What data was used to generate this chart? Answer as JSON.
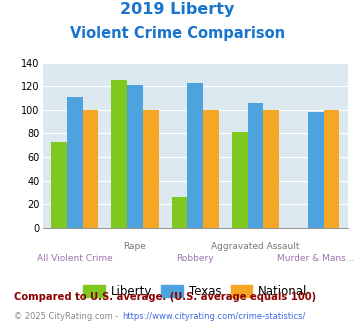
{
  "title_line1": "2019 Liberty",
  "title_line2": "Violent Crime Comparison",
  "title_color": "#1874CD",
  "liberty_values": [
    73,
    125,
    26,
    81,
    0
  ],
  "texas_values": [
    111,
    121,
    123,
    106,
    98
  ],
  "national_values": [
    100,
    100,
    100,
    100,
    100
  ],
  "liberty_color": "#7EC820",
  "texas_color": "#4CA3DD",
  "national_color": "#F5A623",
  "ylim": [
    0,
    140
  ],
  "yticks": [
    0,
    20,
    40,
    60,
    80,
    100,
    120,
    140
  ],
  "background_color": "#DCE9F0",
  "legend_labels": [
    "Liberty",
    "Texas",
    "National"
  ],
  "x_label_top": [
    "",
    "Rape",
    "",
    "Aggravated Assault",
    ""
  ],
  "x_label_bot": [
    "All Violent Crime",
    "",
    "Robbery",
    "",
    "Murder & Mans..."
  ],
  "x_top_color": "#777777",
  "x_bot_color": "#9B72B0",
  "footnote1": "Compared to U.S. average. (U.S. average equals 100)",
  "footnote2": "© 2025 CityRating.com - https://www.cityrating.com/crime-statistics/",
  "footnote1_color": "#8B0000",
  "footnote2_color": "#888888",
  "footnote2_link_color": "#4169E1"
}
